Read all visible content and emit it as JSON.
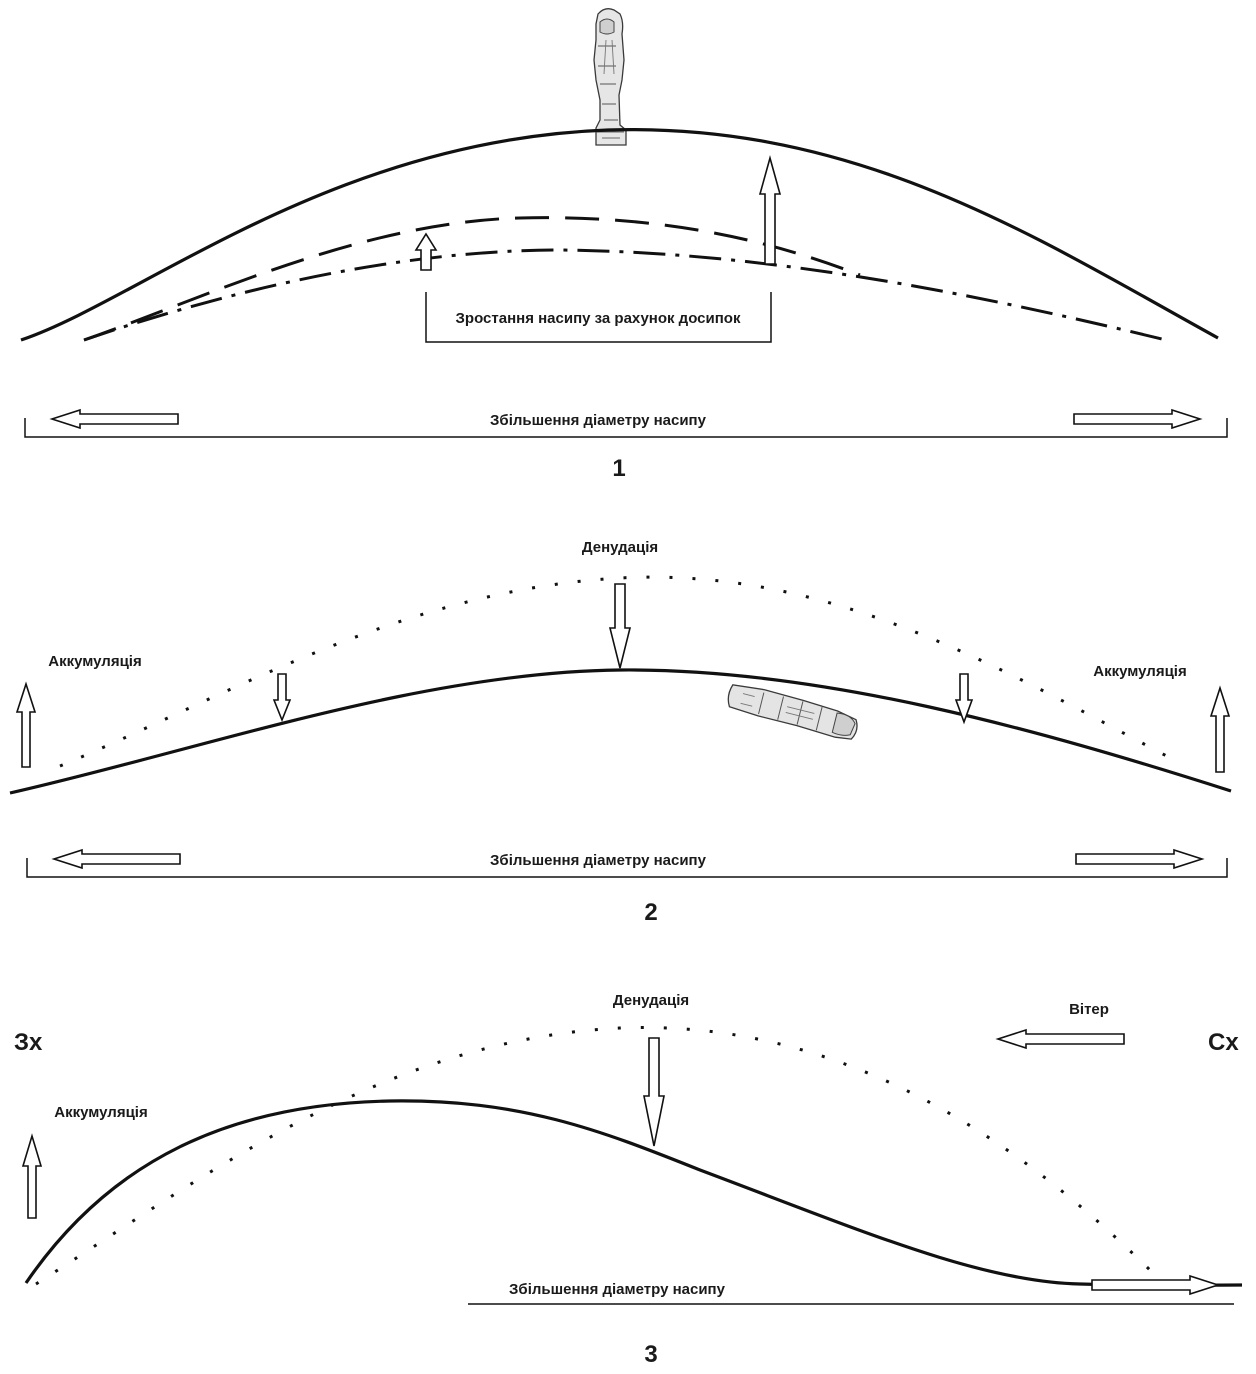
{
  "panel1": {
    "growth_label": "Зростання насипу за рахунок досипок",
    "diameter_label": "Збільшення діаметру насипу",
    "number": "1"
  },
  "panel2": {
    "denudation_label": "Денудація",
    "accumulation_left": "Аккумуляція",
    "accumulation_right": "Аккумуляція",
    "diameter_label": "Збільшення діаметру насипу",
    "number": "2"
  },
  "panel3": {
    "west_label": "Зх",
    "east_label": "Сх",
    "wind_label": "Вітер",
    "denudation_label": "Денудація",
    "accumulation_label": "Аккумуляція",
    "diameter_label": "Збільшення діаметру насипу",
    "number": "3"
  },
  "icons": [
    "standing-stone-statue-icon",
    "fallen-stone-statue-icon"
  ],
  "colors": {
    "line": "#111111",
    "text": "#1a1a1a",
    "background": "#ffffff"
  }
}
